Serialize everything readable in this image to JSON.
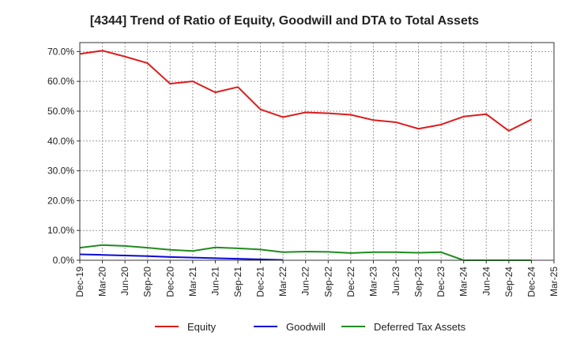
{
  "chart_data": {
    "type": "line",
    "title": "[4344]  Trend of Ratio of Equity, Goodwill and DTA to Total Assets",
    "xlabel": "",
    "ylabel": "",
    "ylim": [
      0,
      73
    ],
    "y_ticks": [
      0,
      10,
      20,
      30,
      40,
      50,
      60,
      70
    ],
    "y_tick_labels": [
      "0.0%",
      "10.0%",
      "20.0%",
      "30.0%",
      "40.0%",
      "50.0%",
      "60.0%",
      "70.0%"
    ],
    "grid": true,
    "legend_position": "bottom",
    "categories": [
      "Dec-19",
      "Mar-20",
      "Jun-20",
      "Sep-20",
      "Dec-20",
      "Mar-21",
      "Jun-21",
      "Sep-21",
      "Dec-21",
      "Mar-22",
      "Jun-22",
      "Sep-22",
      "Dec-22",
      "Mar-23",
      "Jun-23",
      "Sep-23",
      "Dec-23",
      "Mar-24",
      "Jun-24",
      "Sep-24",
      "Dec-24",
      "Mar-25"
    ],
    "series": [
      {
        "name": "Equity",
        "color": "#dd1c1c",
        "values": [
          69.2,
          70.3,
          68.3,
          66.1,
          59.2,
          60.0,
          56.3,
          58.1,
          50.6,
          48.0,
          49.6,
          49.3,
          48.8,
          47.0,
          46.3,
          44.1,
          45.5,
          48.2,
          49.0,
          43.4,
          47.2,
          null
        ]
      },
      {
        "name": "Goodwill",
        "color": "#0a0ad6",
        "values": [
          2.0,
          1.8,
          1.6,
          1.4,
          1.1,
          0.9,
          0.7,
          0.5,
          0.3,
          0.1,
          null,
          null,
          null,
          null,
          null,
          null,
          null,
          null,
          null,
          null,
          null,
          null
        ]
      },
      {
        "name": "Deferred Tax Assets",
        "color": "#1f8c1f",
        "values": [
          4.2,
          5.1,
          4.8,
          4.2,
          3.5,
          3.1,
          4.3,
          4.0,
          3.6,
          2.7,
          2.9,
          2.8,
          2.4,
          2.7,
          2.7,
          2.5,
          2.7,
          0.0,
          0.0,
          0.0,
          0.0,
          null
        ]
      }
    ]
  }
}
